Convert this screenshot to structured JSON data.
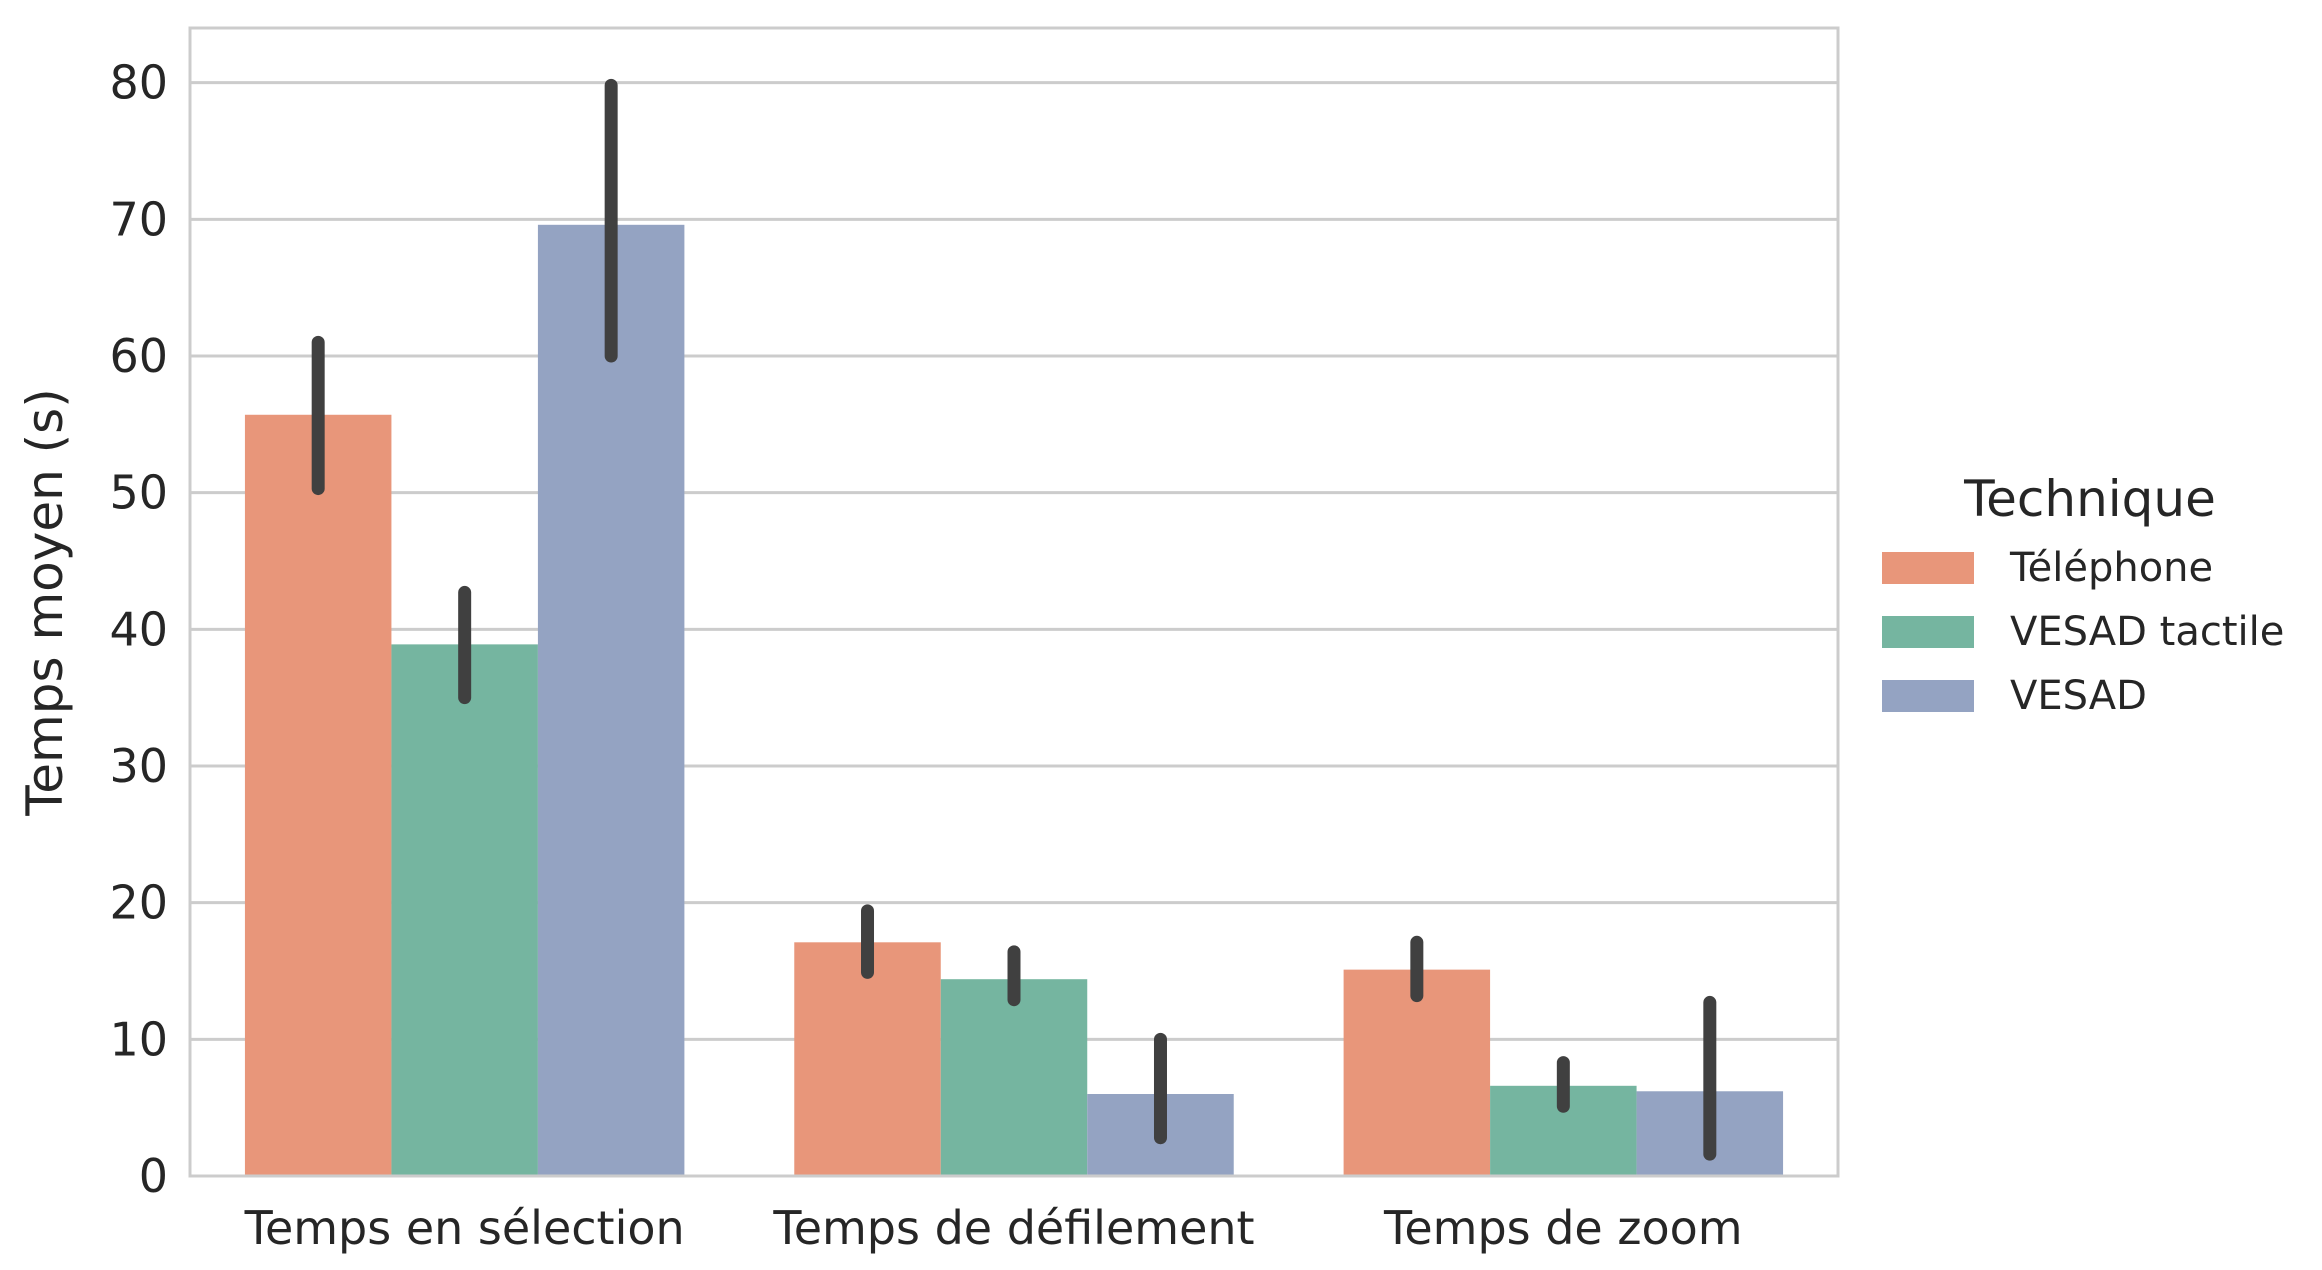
{
  "chart_data": {
    "type": "bar",
    "categories": [
      "Temps en sélection",
      "Temps de défilement",
      "Temps de zoom"
    ],
    "ylabel": "Temps moyen (s)",
    "xlabel": "",
    "ylim": [
      0,
      84
    ],
    "yticks": [
      0,
      10,
      20,
      30,
      40,
      50,
      60,
      70,
      80
    ],
    "grid": "horizontal",
    "legend": {
      "title": "Technique",
      "placement": "right"
    },
    "series": [
      {
        "name": "Téléphone",
        "color": "#e8967a",
        "values": [
          55.7,
          17.1,
          15.1
        ],
        "ci_low": [
          50.3,
          14.9,
          13.2
        ],
        "ci_high": [
          61.0,
          19.4,
          17.1
        ]
      },
      {
        "name": "VESAD tactile",
        "color": "#75b5a0",
        "values": [
          38.9,
          14.4,
          6.6
        ],
        "ci_low": [
          35.0,
          12.9,
          5.1
        ],
        "ci_high": [
          42.7,
          16.4,
          8.3
        ]
      },
      {
        "name": "VESAD",
        "color": "#94a3c2",
        "values": [
          69.6,
          6.0,
          6.2
        ],
        "ci_low": [
          60.0,
          2.8,
          1.6
        ],
        "ci_high": [
          79.8,
          10.0,
          12.7
        ]
      }
    ]
  }
}
